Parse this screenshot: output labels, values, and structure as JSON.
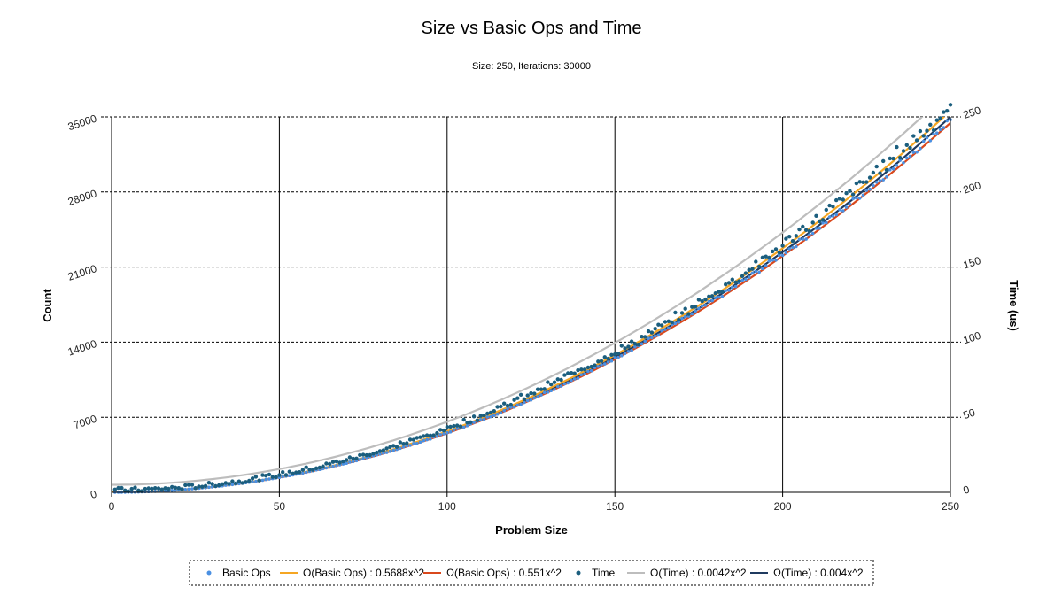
{
  "chart_data": {
    "type": "scatter",
    "title": "Size vs Basic Ops and Time",
    "subtitle": "Size: 250, Iterations: 30000",
    "xlabel": "Problem Size",
    "ylabel": "Count",
    "y2label": "Time (us)",
    "xlim": [
      0,
      250
    ],
    "ylim": [
      0,
      35000
    ],
    "y2lim": [
      0,
      250
    ],
    "xticks": [
      "0",
      "50",
      "100",
      "150",
      "200",
      "250"
    ],
    "yticks": [
      "0",
      "7000",
      "14000",
      "21000",
      "28000",
      "35000"
    ],
    "y2ticks": [
      "0",
      "50",
      "100",
      "150",
      "200",
      "250"
    ],
    "grid": true,
    "legend_position": "bottom",
    "series": [
      {
        "name": "Basic Ops",
        "kind": "points",
        "axis": "left",
        "color": "#4a90e2",
        "coef": 0.556
      },
      {
        "name": "O(Basic Ops) : 0.5688x^2",
        "kind": "curve",
        "axis": "left",
        "color": "#f5a623",
        "coef": 0.5688
      },
      {
        "name": "Ω(Basic Ops) : 0.551x^2",
        "kind": "curve",
        "axis": "left",
        "color": "#d9481c",
        "coef": 0.551
      },
      {
        "name": "Time",
        "kind": "points",
        "axis": "right",
        "color": "#1b5e7e",
        "coef": 0.00411
      },
      {
        "name": "O(Time) : 0.0042x^2",
        "kind": "curve",
        "axis": "right",
        "color": "#bdbdbd",
        "coef": 0.0042,
        "offset": 5
      },
      {
        "name": "Ω(Time) : 0.004x^2",
        "kind": "curve",
        "axis": "right",
        "color": "#1f3a5f",
        "coef": 0.004
      }
    ]
  }
}
